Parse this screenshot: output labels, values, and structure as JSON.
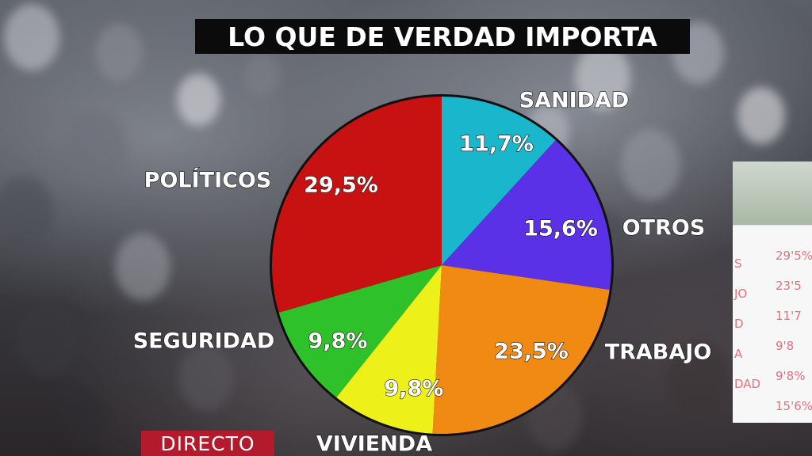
{
  "title": "LO QUE DE VERDAD IMPORTA",
  "badge": "DIRECTO",
  "chart_data": {
    "type": "pie",
    "title": "LO QUE DE VERDAD IMPORTA",
    "slices": [
      {
        "label": "SANIDAD",
        "value": 11.7,
        "display": "11,7%",
        "color": "#1ab6cc"
      },
      {
        "label": "OTROS",
        "value": 15.6,
        "display": "15,6%",
        "color": "#5a31e6"
      },
      {
        "label": "TRABAJO",
        "value": 23.5,
        "display": "23,5%",
        "color": "#f08a12"
      },
      {
        "label": "VIVIENDA",
        "value": 9.8,
        "display": "9,8%",
        "color": "#eef01a"
      },
      {
        "label": "SEGURIDAD",
        "value": 9.8,
        "display": "9,8%",
        "color": "#2fc12a"
      },
      {
        "label": "POLÍTICOS",
        "value": 29.5,
        "display": "29,5%",
        "color": "#c81111"
      }
    ]
  },
  "inset_board_lines": [
    "29'5%",
    "23'5",
    "11'7",
    "9'8",
    "9'8%",
    "15'6%"
  ],
  "inset_board_prefixes": [
    "S",
    "JO",
    "D",
    "A",
    "DAD",
    ""
  ]
}
